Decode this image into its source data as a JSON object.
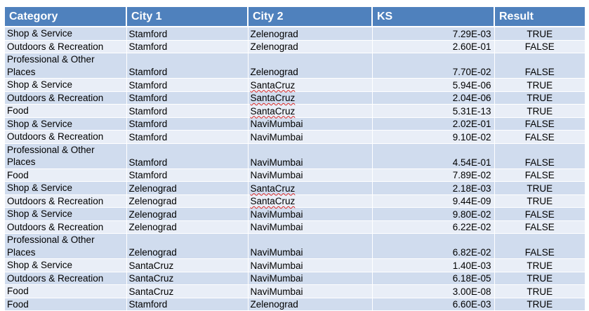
{
  "headers": {
    "category": "Category",
    "city1": "City 1",
    "city2": "City 2",
    "ks": "KS",
    "result": "Result"
  },
  "rows": [
    {
      "category": "Shop & Service",
      "city1": "Stamford",
      "city2": "Zelenograd",
      "ks": "7.29E-03",
      "result": "TRUE"
    },
    {
      "category": "Outdoors & Recreation",
      "city1": "Stamford",
      "city2": "Zelenograd",
      "ks": "2.60E-01",
      "result": "FALSE"
    },
    {
      "category": "Professional & Other Places",
      "city1": "Stamford",
      "city2": "Zelenograd",
      "ks": "7.70E-02",
      "result": "FALSE"
    },
    {
      "category": "Shop & Service",
      "city1": "Stamford",
      "city2": "SantaCruz",
      "ks": "5.94E-06",
      "result": "TRUE"
    },
    {
      "category": "Outdoors & Recreation",
      "city1": "Stamford",
      "city2": "SantaCruz",
      "ks": "2.04E-06",
      "result": "TRUE"
    },
    {
      "category": "Food",
      "city1": "Stamford",
      "city2": "SantaCruz",
      "ks": "5.31E-13",
      "result": "TRUE"
    },
    {
      "category": "Shop & Service",
      "city1": "Stamford",
      "city2": "NaviMumbai",
      "ks": "2.02E-01",
      "result": "FALSE"
    },
    {
      "category": "Outdoors & Recreation",
      "city1": "Stamford",
      "city2": "NaviMumbai",
      "ks": "9.10E-02",
      "result": "FALSE"
    },
    {
      "category": "Professional & Other Places",
      "city1": "Stamford",
      "city2": "NaviMumbai",
      "ks": "4.54E-01",
      "result": "FALSE"
    },
    {
      "category": "Food",
      "city1": "Stamford",
      "city2": "NaviMumbai",
      "ks": "7.89E-02",
      "result": "FALSE"
    },
    {
      "category": "Shop & Service",
      "city1": "Zelenograd",
      "city2": "SantaCruz",
      "ks": "2.18E-03",
      "result": "TRUE"
    },
    {
      "category": "Outdoors & Recreation",
      "city1": "Zelenograd",
      "city2": "SantaCruz",
      "ks": "9.44E-09",
      "result": "TRUE"
    },
    {
      "category": "Shop & Service",
      "city1": "Zelenograd",
      "city2": "NaviMumbai",
      "ks": "9.80E-02",
      "result": "FALSE"
    },
    {
      "category": "Outdoors & Recreation",
      "city1": "Zelenograd",
      "city2": "NaviMumbai",
      "ks": "6.22E-02",
      "result": "FALSE"
    },
    {
      "category": "Professional & Other Places",
      "city1": "Zelenograd",
      "city2": "NaviMumbai",
      "ks": "6.82E-02",
      "result": "FALSE"
    },
    {
      "category": "Shop & Service",
      "city1": "SantaCruz",
      "city2": "NaviMumbai",
      "ks": "1.40E-03",
      "result": "TRUE"
    },
    {
      "category": "Outdoors & Recreation",
      "city1": "SantaCruz",
      "city2": "NaviMumbai",
      "ks": "6.18E-05",
      "result": "TRUE"
    },
    {
      "category": "Food",
      "city1": "SantaCruz",
      "city2": "NaviMumbai",
      "ks": "3.00E-08",
      "result": "TRUE"
    },
    {
      "category": "Food",
      "city1": "Stamford",
      "city2": "Zelenograd",
      "ks": "6.60E-03",
      "result": "TRUE"
    }
  ],
  "colors": {
    "header_bg": "#4f81bd",
    "row_dark": "#d0dcee",
    "row_light": "#e9eef7",
    "spellcheck_underline": "#d02020"
  }
}
